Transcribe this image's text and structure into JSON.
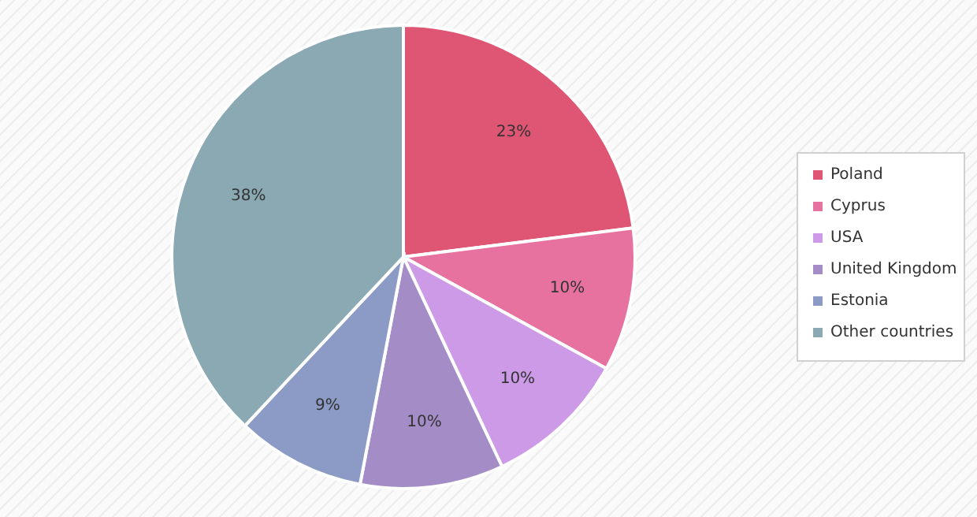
{
  "chart_data": {
    "type": "pie",
    "categories": [
      "Poland",
      "Cyprus",
      "USA",
      "United Kingdom",
      "Estonia",
      "Other countries"
    ],
    "values": [
      23,
      10,
      10,
      10,
      9,
      38
    ],
    "colors": [
      "#de5674",
      "#e772a0",
      "#cc9ae6",
      "#a48cc6",
      "#8c9ac6",
      "#8aa9b3"
    ],
    "value_labels": [
      "23%",
      "10%",
      "10%",
      "10%",
      "9%",
      "38%"
    ],
    "legend": "right"
  }
}
